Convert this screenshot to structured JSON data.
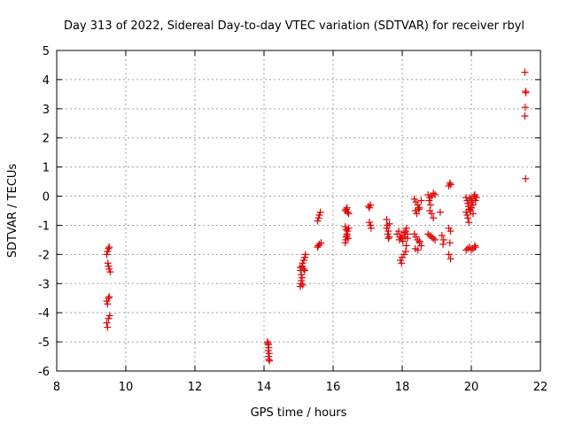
{
  "chart_data": {
    "type": "scatter",
    "title": "Day 313 of 2022, Sidereal Day-to-day VTEC variation (SDTVAR) for receiver rbyl",
    "xlabel": "GPS time / hours",
    "ylabel": "SDTVAR / TECUs",
    "xlim": [
      8,
      22
    ],
    "ylim": [
      -6,
      5
    ],
    "x_ticks": [
      8,
      10,
      12,
      14,
      16,
      18,
      20,
      22
    ],
    "y_ticks": [
      -6,
      -5,
      -4,
      -3,
      -2,
      -1,
      0,
      1,
      2,
      3,
      4,
      5
    ],
    "x_tick_labels": [
      "8",
      "10",
      "12",
      "14",
      "16",
      "18",
      "20",
      "22"
    ],
    "y_tick_labels": [
      "-6",
      "-5",
      "-4",
      "-3",
      "-2",
      "-1",
      "0",
      "1",
      "2",
      "3",
      "4",
      "5"
    ],
    "grid": true,
    "marker": "+",
    "color": "#e00000",
    "series": [
      {
        "name": "SDTVAR",
        "points": [
          [
            9.45,
            -2.0
          ],
          [
            9.47,
            -1.9
          ],
          [
            9.5,
            -1.8
          ],
          [
            9.52,
            -1.75
          ],
          [
            9.48,
            -2.3
          ],
          [
            9.5,
            -2.4
          ],
          [
            9.52,
            -2.5
          ],
          [
            9.55,
            -2.6
          ],
          [
            9.45,
            -3.6
          ],
          [
            9.47,
            -3.7
          ],
          [
            9.5,
            -3.5
          ],
          [
            9.52,
            -3.45
          ],
          [
            9.45,
            -4.35
          ],
          [
            9.47,
            -4.5
          ],
          [
            9.5,
            -4.2
          ],
          [
            9.53,
            -4.1
          ],
          [
            14.1,
            -5.0
          ],
          [
            14.12,
            -5.1
          ],
          [
            14.14,
            -5.2
          ],
          [
            14.12,
            -5.3
          ],
          [
            14.15,
            -5.4
          ],
          [
            14.13,
            -5.5
          ],
          [
            14.14,
            -5.6
          ],
          [
            14.16,
            -5.65
          ],
          [
            14.12,
            -5.05
          ],
          [
            15.05,
            -3.1
          ],
          [
            15.07,
            -3.0
          ],
          [
            15.08,
            -2.9
          ],
          [
            15.1,
            -2.8
          ],
          [
            15.08,
            -2.7
          ],
          [
            15.06,
            -2.55
          ],
          [
            15.05,
            -2.45
          ],
          [
            15.1,
            -2.4
          ],
          [
            15.12,
            -2.3
          ],
          [
            15.15,
            -2.2
          ],
          [
            15.18,
            -2.1
          ],
          [
            15.2,
            -2.0
          ],
          [
            15.15,
            -2.5
          ],
          [
            15.18,
            -2.55
          ],
          [
            15.12,
            -3.05
          ],
          [
            15.55,
            -1.75
          ],
          [
            15.57,
            -1.7
          ],
          [
            15.6,
            -1.65
          ],
          [
            15.65,
            -1.6
          ],
          [
            15.55,
            -0.85
          ],
          [
            15.58,
            -0.75
          ],
          [
            15.6,
            -0.65
          ],
          [
            15.63,
            -0.55
          ],
          [
            16.35,
            -1.6
          ],
          [
            16.37,
            -1.5
          ],
          [
            16.38,
            -1.4
          ],
          [
            16.4,
            -1.3
          ],
          [
            16.42,
            -1.2
          ],
          [
            16.45,
            -1.1
          ],
          [
            16.35,
            -1.05
          ],
          [
            16.38,
            -1.15
          ],
          [
            16.4,
            -1.35
          ],
          [
            16.43,
            -1.45
          ],
          [
            16.35,
            -0.5
          ],
          [
            16.38,
            -0.45
          ],
          [
            16.4,
            -0.4
          ],
          [
            16.42,
            -0.55
          ],
          [
            16.45,
            -0.6
          ],
          [
            17.05,
            -0.9
          ],
          [
            17.08,
            -1.0
          ],
          [
            17.1,
            -1.1
          ],
          [
            17.05,
            -0.4
          ],
          [
            17.08,
            -0.3
          ],
          [
            17.03,
            -0.35
          ],
          [
            17.55,
            -0.8
          ],
          [
            17.57,
            -1.0
          ],
          [
            17.6,
            -1.2
          ],
          [
            17.62,
            -1.4
          ],
          [
            17.55,
            -1.1
          ],
          [
            17.58,
            -1.3
          ],
          [
            17.6,
            -1.45
          ],
          [
            17.63,
            -0.95
          ],
          [
            17.85,
            -1.3
          ],
          [
            17.9,
            -1.2
          ],
          [
            17.95,
            -1.4
          ],
          [
            18.0,
            -1.35
          ],
          [
            18.05,
            -1.25
          ],
          [
            18.1,
            -1.2
          ],
          [
            18.12,
            -1.1
          ],
          [
            18.15,
            -1.3
          ],
          [
            17.92,
            -1.5
          ],
          [
            17.98,
            -1.45
          ],
          [
            18.02,
            -1.55
          ],
          [
            18.08,
            -1.4
          ],
          [
            18.15,
            -1.45
          ],
          [
            17.95,
            -2.2
          ],
          [
            18.0,
            -2.1
          ],
          [
            18.05,
            -2.0
          ],
          [
            18.1,
            -1.9
          ],
          [
            18.12,
            -1.7
          ],
          [
            17.98,
            -2.3
          ],
          [
            18.35,
            -0.1
          ],
          [
            18.4,
            -0.2
          ],
          [
            18.45,
            -0.3
          ],
          [
            18.5,
            -0.4
          ],
          [
            18.55,
            -0.15
          ],
          [
            18.38,
            -0.5
          ],
          [
            18.42,
            -0.6
          ],
          [
            18.48,
            -0.45
          ],
          [
            18.35,
            -1.3
          ],
          [
            18.4,
            -1.4
          ],
          [
            18.45,
            -1.5
          ],
          [
            18.5,
            -1.6
          ],
          [
            18.55,
            -1.7
          ],
          [
            18.38,
            -1.8
          ],
          [
            18.45,
            -1.85
          ],
          [
            18.5,
            -1.55
          ],
          [
            18.75,
            0.05
          ],
          [
            18.8,
            -0.05
          ],
          [
            18.85,
            0.0
          ],
          [
            18.9,
            0.1
          ],
          [
            18.95,
            0.05
          ],
          [
            18.78,
            -0.15
          ],
          [
            18.82,
            -0.3
          ],
          [
            18.8,
            -0.5
          ],
          [
            18.85,
            -0.6
          ],
          [
            18.9,
            -0.75
          ],
          [
            18.75,
            -1.3
          ],
          [
            18.8,
            -1.35
          ],
          [
            18.85,
            -1.4
          ],
          [
            18.9,
            -1.45
          ],
          [
            18.95,
            -1.5
          ],
          [
            19.1,
            -0.55
          ],
          [
            19.15,
            -1.35
          ],
          [
            19.2,
            -1.5
          ],
          [
            19.18,
            -1.65
          ],
          [
            19.35,
            0.35
          ],
          [
            19.38,
            0.45
          ],
          [
            19.4,
            0.4
          ],
          [
            19.35,
            -1.1
          ],
          [
            19.4,
            -1.2
          ],
          [
            19.38,
            -1.6
          ],
          [
            19.35,
            -2.0
          ],
          [
            19.4,
            -2.15
          ],
          [
            19.85,
            -0.05
          ],
          [
            19.88,
            -0.15
          ],
          [
            19.9,
            -0.25
          ],
          [
            19.92,
            -0.35
          ],
          [
            19.95,
            -0.45
          ],
          [
            19.85,
            -0.55
          ],
          [
            19.88,
            -0.65
          ],
          [
            19.9,
            -0.75
          ],
          [
            19.93,
            -0.9
          ],
          [
            19.95,
            -0.05
          ],
          [
            20.0,
            -0.1
          ],
          [
            20.02,
            -0.2
          ],
          [
            20.05,
            -0.3
          ],
          [
            20.08,
            0.0
          ],
          [
            20.1,
            0.05
          ],
          [
            20.12,
            -0.15
          ],
          [
            20.15,
            -0.05
          ],
          [
            20.0,
            -0.4
          ],
          [
            19.98,
            -0.5
          ],
          [
            20.05,
            -0.6
          ],
          [
            19.85,
            -1.85
          ],
          [
            19.9,
            -1.8
          ],
          [
            19.95,
            -1.75
          ],
          [
            20.0,
            -1.85
          ],
          [
            20.05,
            -1.8
          ],
          [
            20.1,
            -1.7
          ],
          [
            20.12,
            -1.75
          ],
          [
            21.55,
            4.25
          ],
          [
            21.57,
            3.6
          ],
          [
            21.58,
            3.55
          ],
          [
            21.56,
            3.05
          ],
          [
            21.55,
            2.75
          ],
          [
            21.57,
            0.6
          ]
        ]
      }
    ]
  }
}
